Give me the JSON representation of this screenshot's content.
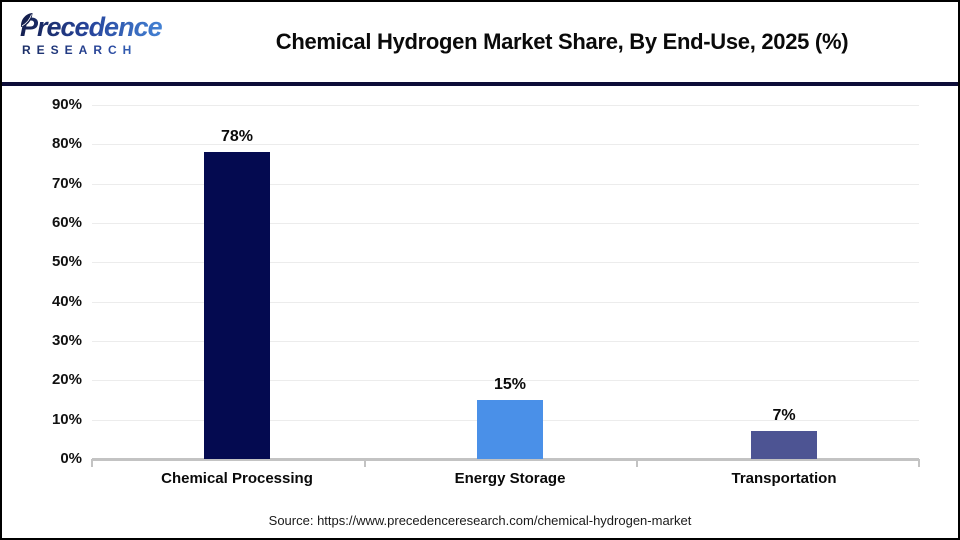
{
  "header": {
    "logo": {
      "line1": "Precedence",
      "line2": "RESEARCH"
    },
    "title": "Chemical Hydrogen Market Share, By End-Use, 2025 (%)"
  },
  "chart_data": {
    "type": "bar",
    "title": "Chemical Hydrogen Market Share, By End-Use, 2025 (%)",
    "categories": [
      "Chemical Processing",
      "Energy Storage",
      "Transportation"
    ],
    "values": [
      78,
      15,
      7
    ],
    "value_labels": [
      "78%",
      "15%",
      "7%"
    ],
    "bar_colors": [
      "#040a50",
      "#4a90e8",
      "#4d5493"
    ],
    "xlabel": "",
    "ylabel": "",
    "ylim": [
      0,
      90
    ],
    "yticks": [
      0,
      10,
      20,
      30,
      40,
      50,
      60,
      70,
      80,
      90
    ],
    "ytick_labels": [
      "0%",
      "10%",
      "20%",
      "30%",
      "40%",
      "50%",
      "60%",
      "70%",
      "80%",
      "90%"
    ],
    "grid": "horizontal",
    "legend": "none"
  },
  "source": "Source: https://www.precedenceresearch.com/chemical-hydrogen-market",
  "colors": {
    "divider": "#0d0d38",
    "gridline": "#ececec",
    "axis_line": "#c3c3c3",
    "title_text": "#0a0a0a",
    "logo_navy": "#1b2d63",
    "logo_blue": "#4a8fe0"
  }
}
